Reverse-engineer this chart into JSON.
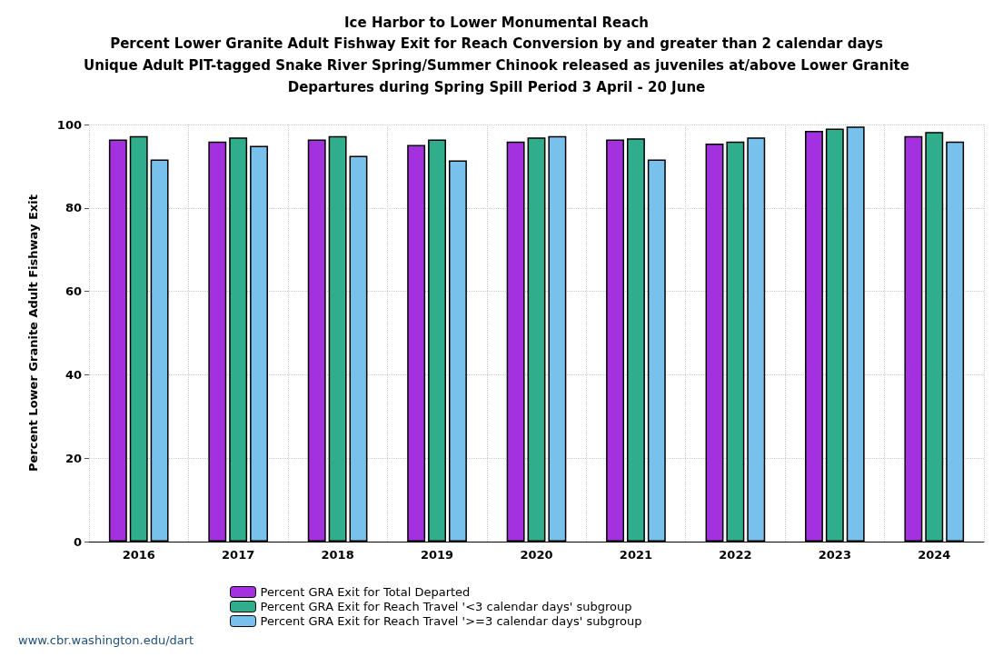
{
  "chart_data": {
    "type": "bar",
    "title": "Ice Harbor to Lower Monumental Reach",
    "subtitle": "Percent Lower Granite Adult Fishway Exit for Reach Conversion by and greater than 2 calendar days\nUnique Adult PIT-tagged Snake River Spring/Summer Chinook released as juveniles at/above Lower Granite\nDepartures during Spring Spill Period 3 April - 20 June",
    "ylabel": "Percent Lower Granite Adult Fishway Exit",
    "categories": [
      "2016",
      "2017",
      "2018",
      "2019",
      "2020",
      "2021",
      "2022",
      "2023",
      "2024"
    ],
    "series": [
      {
        "name": "Percent GRA Exit for Total Departed",
        "color": "#a431de",
        "values": [
          96.4,
          95.9,
          96.4,
          95.1,
          95.9,
          96.4,
          95.4,
          98.5,
          97.2
        ]
      },
      {
        "name": "Percent GRA Exit for Reach Travel '<3 calendar days' subgroup",
        "color": "#30ae8c",
        "values": [
          97.2,
          96.9,
          97.2,
          96.4,
          96.9,
          96.7,
          95.9,
          99.0,
          98.2
        ]
      },
      {
        "name": "Percent GRA Exit for Reach Travel '>=3 calendar days' subgroup",
        "color": "#78c1ec",
        "values": [
          91.6,
          94.9,
          92.5,
          91.4,
          97.2,
          91.6,
          96.9,
          99.5,
          95.9
        ]
      }
    ],
    "ylim": [
      0,
      100
    ],
    "yticks": [
      0,
      20,
      40,
      60,
      80,
      100
    ],
    "grid": true,
    "legend": "bottom",
    "annotations": [
      "www.cbr.washington.edu/dart"
    ]
  }
}
